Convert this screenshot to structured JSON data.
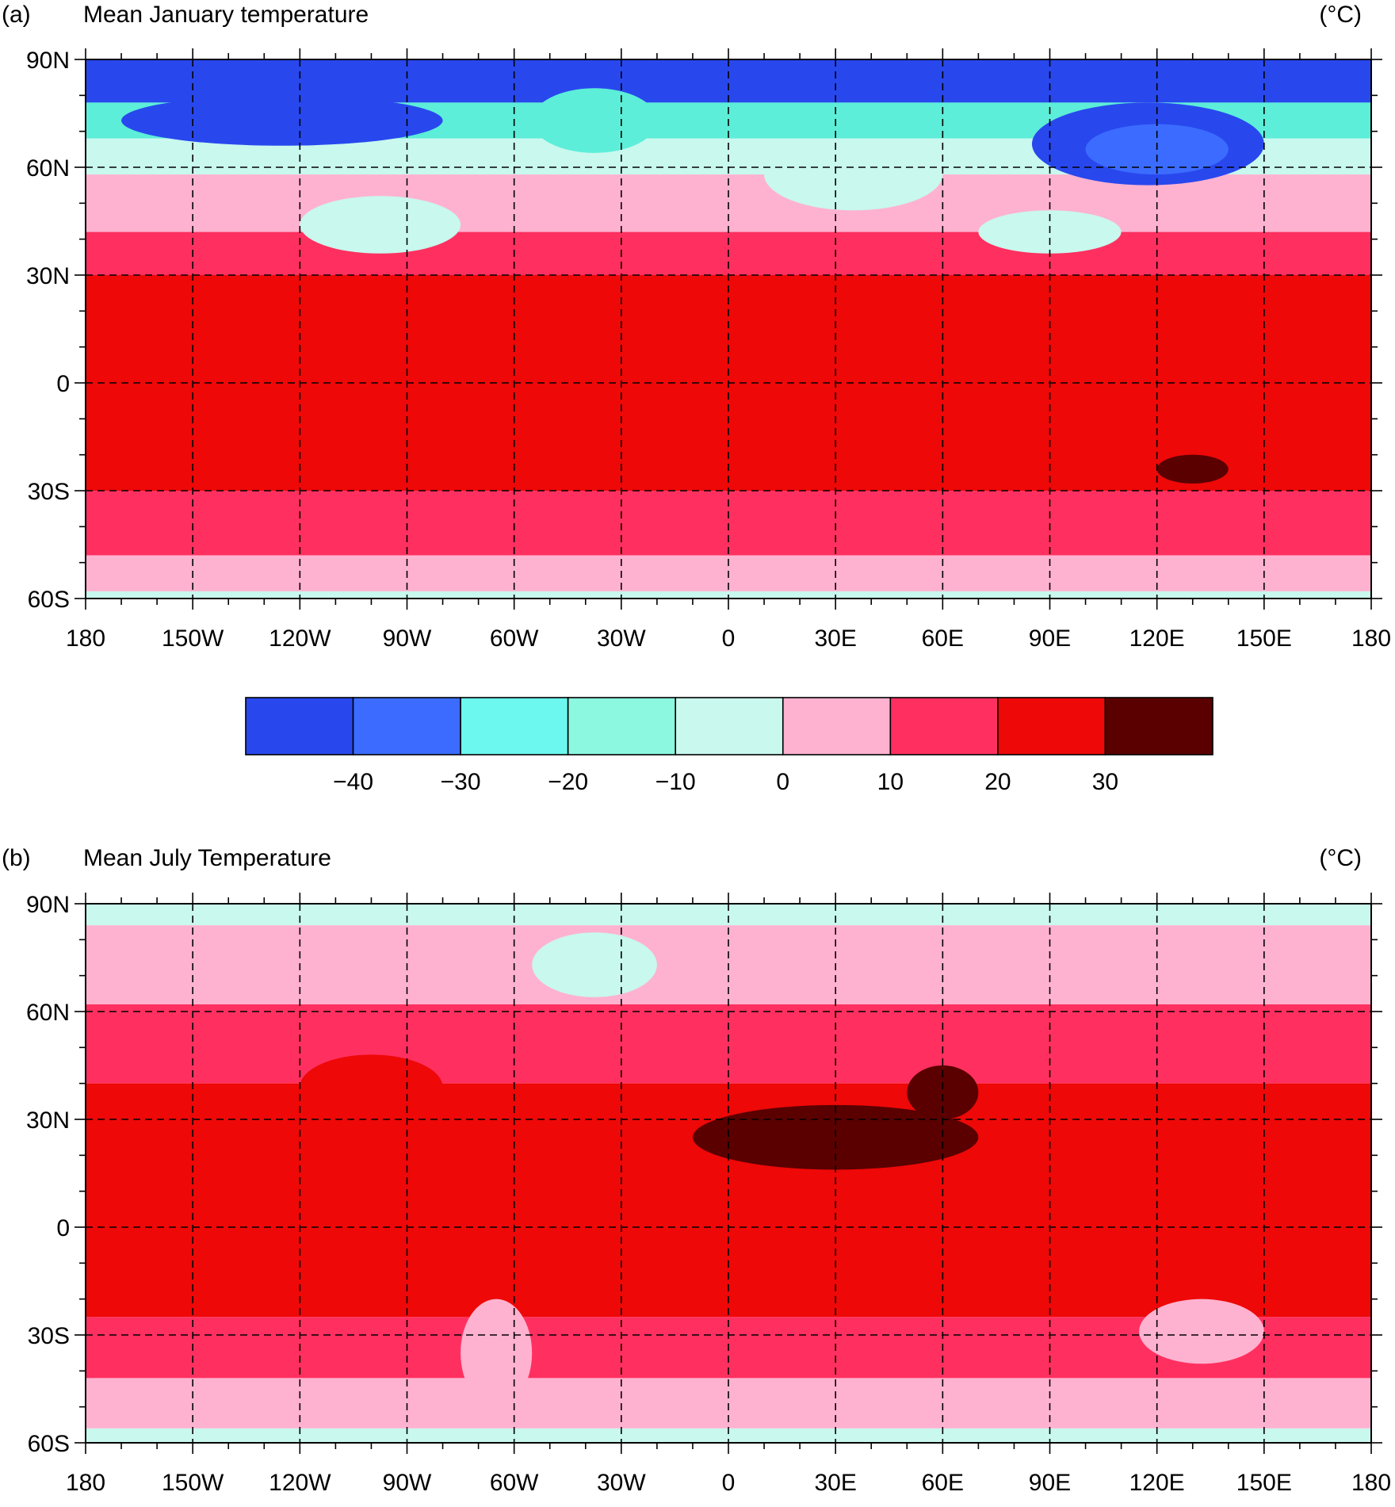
{
  "panels": [
    {
      "id": "a",
      "label": "(a)",
      "title": "Mean January temperature",
      "units": "(°C)",
      "lat_labels": [
        "90N",
        "60N",
        "30N",
        "0",
        "30S",
        "60S"
      ],
      "lon_labels": [
        "180",
        "150W",
        "120W",
        "90W",
        "60W",
        "30W",
        "0",
        "30E",
        "60E",
        "90E",
        "120E",
        "150E",
        "180"
      ],
      "bands": [
        {
          "from": 90,
          "to": 78,
          "color": "#2848ee"
        },
        {
          "from": 78,
          "to": 68,
          "color": "#5ceed8"
        },
        {
          "from": 68,
          "to": 58,
          "color": "#c8f8ee"
        },
        {
          "from": 58,
          "to": 42,
          "color": "#ffb2d0"
        },
        {
          "from": 42,
          "to": 30,
          "color": "#ff3060"
        },
        {
          "from": 30,
          "to": -30,
          "color": "#ee0808"
        },
        {
          "from": -30,
          "to": -48,
          "color": "#ff3060"
        },
        {
          "from": -48,
          "to": -58,
          "color": "#ffb2d0"
        },
        {
          "from": -58,
          "to": -60,
          "color": "#c8f8ee"
        }
      ],
      "land_patches": [
        {
          "lon": [
            -170,
            -80
          ],
          "lat": [
            80,
            66
          ],
          "color": "#2848ee"
        },
        {
          "lon": [
            -120,
            -75
          ],
          "lat": [
            52,
            36
          ],
          "color": "#c8f8ee"
        },
        {
          "lon": [
            -55,
            -20
          ],
          "lat": [
            82,
            64
          ],
          "color": "#5ceed8"
        },
        {
          "lon": [
            85,
            150
          ],
          "lat": [
            78,
            55
          ],
          "color": "#2848ee"
        },
        {
          "lon": [
            100,
            140
          ],
          "lat": [
            72,
            58
          ],
          "color": "#3b6cff"
        },
        {
          "lon": [
            10,
            60
          ],
          "lat": [
            68,
            48
          ],
          "color": "#c8f8ee"
        },
        {
          "lon": [
            70,
            110
          ],
          "lat": [
            48,
            36
          ],
          "color": "#c8f8ee"
        },
        {
          "lon": [
            120,
            140
          ],
          "lat": [
            -20,
            -28
          ],
          "color": "#5a0000"
        }
      ]
    },
    {
      "id": "b",
      "label": "(b)",
      "title": "Mean July Temperature",
      "units": "(°C)",
      "lat_labels": [
        "90N",
        "60N",
        "30N",
        "0",
        "30S",
        "60S"
      ],
      "lon_labels": [
        "180",
        "150W",
        "120W",
        "90W",
        "60W",
        "30W",
        "0",
        "30E",
        "60E",
        "90E",
        "120E",
        "150E",
        "180"
      ],
      "bands": [
        {
          "from": 90,
          "to": 84,
          "color": "#c8f8ee"
        },
        {
          "from": 84,
          "to": 62,
          "color": "#ffb2d0"
        },
        {
          "from": 62,
          "to": 40,
          "color": "#ff3060"
        },
        {
          "from": 40,
          "to": -25,
          "color": "#ee0808"
        },
        {
          "from": -25,
          "to": -42,
          "color": "#ff3060"
        },
        {
          "from": -42,
          "to": -56,
          "color": "#ffb2d0"
        },
        {
          "from": -56,
          "to": -60,
          "color": "#c8f8ee"
        }
      ],
      "land_patches": [
        {
          "lon": [
            -55,
            -20
          ],
          "lat": [
            82,
            64
          ],
          "color": "#c8f8ee"
        },
        {
          "lon": [
            -10,
            70
          ],
          "lat": [
            34,
            16
          ],
          "color": "#5a0000"
        },
        {
          "lon": [
            50,
            70
          ],
          "lat": [
            45,
            30
          ],
          "color": "#5a0000"
        },
        {
          "lon": [
            -120,
            -80
          ],
          "lat": [
            48,
            30
          ],
          "color": "#ee0808"
        },
        {
          "lon": [
            115,
            150
          ],
          "lat": [
            -20,
            -38
          ],
          "color": "#ffb2d0"
        },
        {
          "lon": [
            -75,
            -55
          ],
          "lat": [
            -20,
            -50
          ],
          "color": "#ffb2d0"
        }
      ]
    }
  ],
  "colorbar": {
    "colors": [
      "#2848ee",
      "#3b6cff",
      "#6cf8ee",
      "#8cf8e0",
      "#c8f8ee",
      "#ffb2d0",
      "#ff3060",
      "#ee0808",
      "#5a0000"
    ],
    "tick_labels": [
      "−40",
      "−30",
      "−20",
      "−10",
      "0",
      "10",
      "20",
      "30"
    ]
  }
}
